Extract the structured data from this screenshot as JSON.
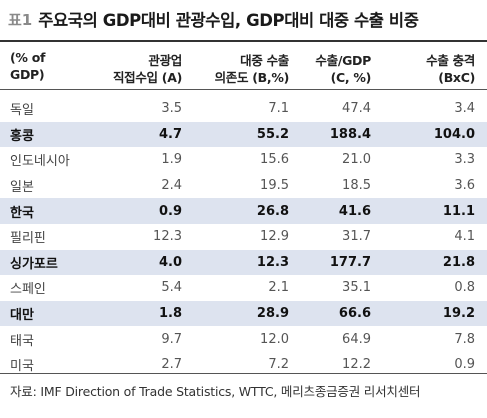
{
  "title": {
    "label": "표1",
    "text": "주요국의 GDP대비 관광수입, GDP대비 대중 수출 비중"
  },
  "table": {
    "headers": [
      {
        "line1": "(% of GDP)",
        "line2": ""
      },
      {
        "line1": "관광업",
        "line2": "직접수입 (A)"
      },
      {
        "line1": "대중 수출",
        "line2": "의존도 (B,%)"
      },
      {
        "line1": "수출/GDP",
        "line2": "(C, %)"
      },
      {
        "line1": "수출 충격",
        "line2": "(BxC)"
      }
    ],
    "rows": [
      {
        "cells": [
          "독일",
          "3.5",
          "7.1",
          "47.4",
          "3.4"
        ],
        "highlight": false
      },
      {
        "cells": [
          "홍콩",
          "4.7",
          "55.2",
          "188.4",
          "104.0"
        ],
        "highlight": true
      },
      {
        "cells": [
          "인도네시아",
          "1.9",
          "15.6",
          "21.0",
          "3.3"
        ],
        "highlight": false
      },
      {
        "cells": [
          "일본",
          "2.4",
          "19.5",
          "18.5",
          "3.6"
        ],
        "highlight": false
      },
      {
        "cells": [
          "한국",
          "0.9",
          "26.8",
          "41.6",
          "11.1"
        ],
        "highlight": true
      },
      {
        "cells": [
          "필리핀",
          "12.3",
          "12.9",
          "31.7",
          "4.1"
        ],
        "highlight": false
      },
      {
        "cells": [
          "싱가포르",
          "4.0",
          "12.3",
          "177.7",
          "21.8"
        ],
        "highlight": true
      },
      {
        "cells": [
          "스페인",
          "5.4",
          "2.1",
          "35.1",
          "0.8"
        ],
        "highlight": false
      },
      {
        "cells": [
          "대만",
          "1.8",
          "28.9",
          "66.6",
          "19.2"
        ],
        "highlight": true
      },
      {
        "cells": [
          "태국",
          "9.7",
          "12.0",
          "64.9",
          "7.8"
        ],
        "highlight": false
      },
      {
        "cells": [
          "미국",
          "2.7",
          "7.2",
          "12.2",
          "0.9"
        ],
        "highlight": false
      }
    ]
  },
  "colors": {
    "highlight_row": "#dde3ef",
    "rule": "#333333"
  },
  "source": "자료: IMF Direction of Trade Statistics, WTTC, 메리츠종금증권 리서치센터"
}
